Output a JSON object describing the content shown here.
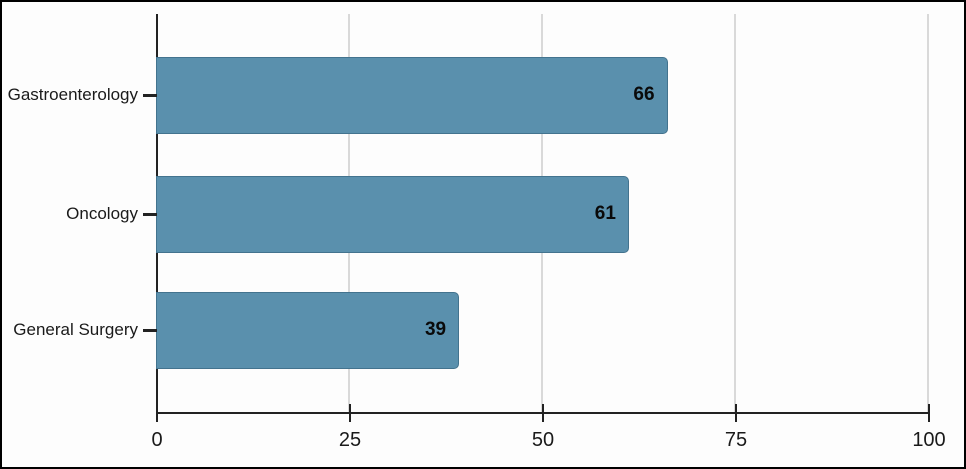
{
  "chart_data": {
    "type": "bar",
    "orientation": "horizontal",
    "title": "",
    "categories": [
      "Gastroenterology",
      "Oncology",
      "General Surgery"
    ],
    "values": [
      66,
      61,
      39
    ],
    "value_labels": [
      "66",
      "61",
      "39"
    ],
    "xlabel": "",
    "ylabel": "",
    "xlim": [
      0,
      100
    ],
    "xticks": [
      0,
      25,
      50,
      75,
      100
    ],
    "grid": true,
    "legend": false,
    "bar_color": "#5a90ad",
    "gridline_color": "#d9d9d9",
    "axis_color": "#222222",
    "value_label_color": "#0a0a0a",
    "frame_border_color": "#000000",
    "background_color": "#fdfdfd"
  }
}
